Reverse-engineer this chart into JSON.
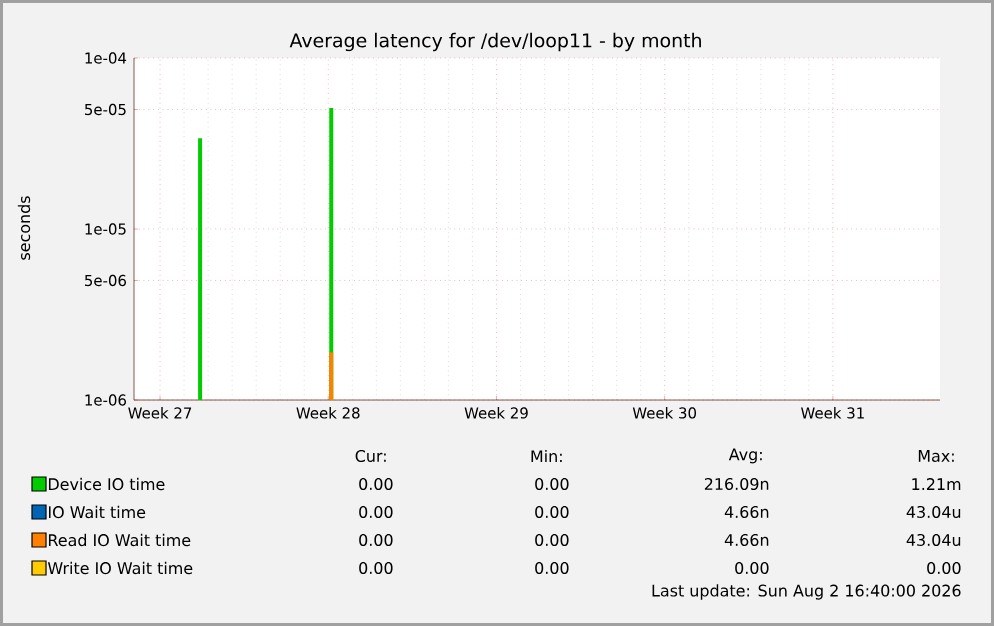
{
  "chart_data": {
    "type": "bar",
    "title": "Average latency for /dev/loop11 - by month",
    "ylabel": "seconds",
    "log": "y",
    "xlim": [
      "2026-06-27T22:00",
      "2026-07-31T11:00"
    ],
    "xticks": [
      {
        "value": "2026-06-29",
        "label": "Week 27"
      },
      {
        "value": "2026-07-06",
        "label": "Week 28"
      },
      {
        "value": "2026-07-13",
        "label": "Week 29"
      },
      {
        "value": "2026-07-20",
        "label": "Week 30"
      },
      {
        "value": "2026-07-27",
        "label": "Week 31"
      }
    ],
    "ylim": [
      1e-06,
      0.0001
    ],
    "yticks": [
      {
        "value": 1e-06,
        "label": "1e-06"
      },
      {
        "value": 5e-06,
        "label": "5e-06"
      },
      {
        "value": 1e-05,
        "label": "1e-05"
      },
      {
        "value": 5e-05,
        "label": "5e-05"
      },
      {
        "value": 0.0001,
        "label": "1e-04"
      }
    ],
    "grid": true,
    "legend": "bottom",
    "series": [
      {
        "name": "Device IO time",
        "color": "#00cc00",
        "x": [
          "2026-06-30T16:00",
          "2026-07-06T03:00"
        ],
        "values": [
          3.4e-05,
          5.1e-05
        ]
      },
      {
        "name": "IO Wait time",
        "color": "#0066b3"
      },
      {
        "name": "Read IO Wait time",
        "color": "#ff8000",
        "x": [
          "2026-07-06T03:00"
        ],
        "values": [
          1.9e-06
        ]
      },
      {
        "name": "Write IO Wait time",
        "color": "#ffcc00"
      }
    ],
    "annotations": [
      "Cur:",
      "Min:",
      "Avg:",
      "Max:",
      "0.00",
      "0.00",
      "216.09n",
      "1.21m",
      "0.00",
      "0.00",
      "4.66n",
      "43.04u",
      "0.00",
      "0.00",
      "4.66n",
      "43.04u",
      "0.00",
      "0.00",
      "0.00",
      "0.00",
      "Last update: Sun Aug  2 16:40:00 2026"
    ]
  }
}
